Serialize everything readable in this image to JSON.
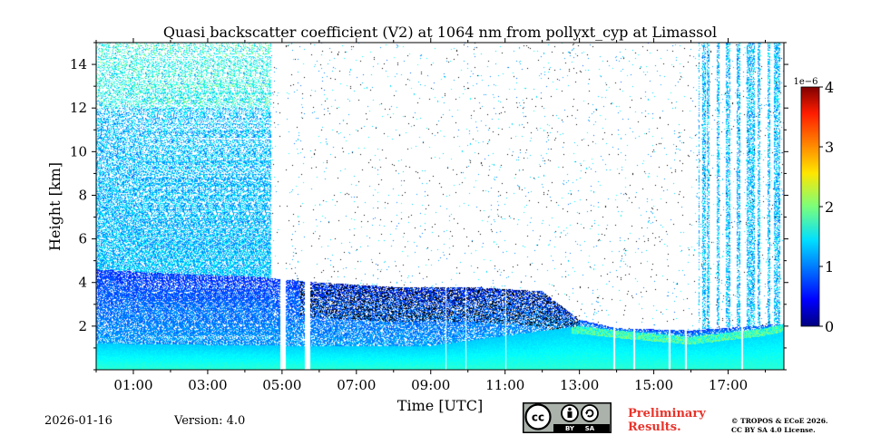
{
  "chart_data": {
    "type": "heatmap",
    "title": "Quasi backscatter coefficient (V2) at 1064 nm from pollyxt_cyp at Limassol",
    "xlabel": "Time [UTC]",
    "ylabel": "Height [km]",
    "xlim": [
      0,
      18.5
    ],
    "ylim": [
      0,
      15
    ],
    "x_ticks": [
      {
        "value": 1,
        "label": "01:00"
      },
      {
        "value": 3,
        "label": "03:00"
      },
      {
        "value": 5,
        "label": "05:00"
      },
      {
        "value": 7,
        "label": "07:00"
      },
      {
        "value": 9,
        "label": "09:00"
      },
      {
        "value": 11,
        "label": "11:00"
      },
      {
        "value": 13,
        "label": "13:00"
      },
      {
        "value": 15,
        "label": "15:00"
      },
      {
        "value": 17,
        "label": "17:00"
      }
    ],
    "y_ticks": [
      {
        "value": 2,
        "label": "2"
      },
      {
        "value": 4,
        "label": "4"
      },
      {
        "value": 6,
        "label": "6"
      },
      {
        "value": 8,
        "label": "8"
      },
      {
        "value": 10,
        "label": "10"
      },
      {
        "value": 12,
        "label": "12"
      },
      {
        "value": 14,
        "label": "14"
      }
    ],
    "colorbar": {
      "min": 0,
      "max": 4,
      "multiplier": "1e−6",
      "ticks": [
        "0",
        "1",
        "2",
        "3",
        "4"
      ],
      "colormap": "jet"
    },
    "layers": {
      "aerosol_layer_top_km": [
        {
          "t": 0,
          "h": 4.6
        },
        {
          "t": 2,
          "h": 4.4
        },
        {
          "t": 4,
          "h": 4.3
        },
        {
          "t": 6,
          "h": 4.0
        },
        {
          "t": 8,
          "h": 3.8
        },
        {
          "t": 10,
          "h": 3.8
        },
        {
          "t": 12,
          "h": 3.6
        },
        {
          "t": 13,
          "h": 2.3
        },
        {
          "t": 14,
          "h": 1.9
        },
        {
          "t": 16,
          "h": 1.8
        },
        {
          "t": 18.5,
          "h": 2.1
        }
      ],
      "boundary_layer_top_km": [
        {
          "t": 0,
          "h": 1.2
        },
        {
          "t": 5,
          "h": 1.1
        },
        {
          "t": 9,
          "h": 1.1
        },
        {
          "t": 13,
          "h": 2.0
        },
        {
          "t": 14,
          "h": 1.8
        },
        {
          "t": 16,
          "h": 1.5
        },
        {
          "t": 18,
          "h": 1.9
        },
        {
          "t": 18.5,
          "h": 2.1
        }
      ]
    },
    "data_gaps_utc": [
      [
        4.95,
        5.1
      ],
      [
        5.62,
        5.75
      ],
      [
        9.4,
        9.42
      ],
      [
        9.93,
        9.95
      ],
      [
        11.0,
        11.02
      ],
      [
        13.9,
        13.95
      ],
      [
        14.45,
        14.5
      ],
      [
        15.4,
        15.45
      ],
      [
        15.85,
        15.9
      ],
      [
        17.35,
        17.4
      ]
    ]
  },
  "footer": {
    "date": "2026-01-16",
    "version": "Version: 4.0",
    "license_badge": {
      "cc": "cc",
      "by": "BY",
      "sa": "SA"
    },
    "preliminary_line1": "Preliminary",
    "preliminary_line2": "Results.",
    "copyright_line1": "© TROPOS & ECoE 2026.",
    "copyright_line2": "CC BY SA 4.0 License."
  }
}
